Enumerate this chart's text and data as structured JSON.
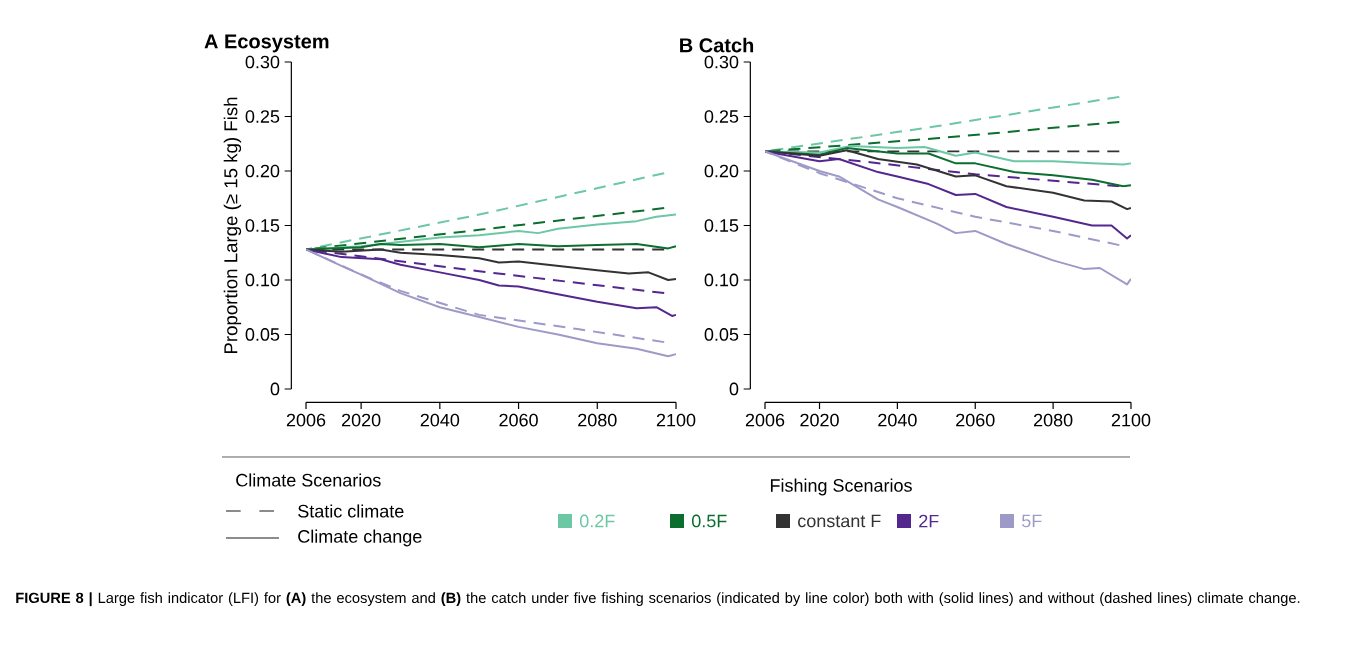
{
  "chart_data": [
    {
      "type": "line",
      "title": "A Ecosystem",
      "ylabel": "Proportion Large (≥ 15 kg) Fish",
      "legend_title": "Fishing Scenarios",
      "legend": "bottom",
      "xlim": [
        2006,
        2100
      ],
      "xticks": [
        2006,
        2020,
        2040,
        2060,
        2080,
        2100
      ],
      "ylim": [
        0,
        0.3
      ],
      "yticks": [
        0,
        0.05,
        {
          "value": 0.1,
          "label": "0.10"
        },
        0.15,
        {
          "value": 0.2,
          "label": "0.20"
        },
        0.25,
        {
          "value": 0.3,
          "label": "0.30"
        }
      ],
      "annotations": [
        "Climate Scenarios",
        "Static climate",
        "Climate change",
        "**FIGURE 8 |** Large fish indicator (LFI) for **(A)** the ecosystem and **(B)** the catch under five fishing scenarios (indicated by line color) both with (solid lines) and without (dashed lines) climate change."
      ],
      "series": [
        {
          "color": "#6cc7a5",
          "line_style": "dashed",
          "x": [
            2006,
            2050,
            2097
          ],
          "values": [
            0.128,
            0.16,
            0.198
          ]
        },
        {
          "color": "#0b6e2e",
          "line_style": "dashed",
          "x": [
            2006,
            2050,
            2097
          ],
          "values": [
            0.128,
            0.146,
            0.166
          ]
        },
        {
          "color": "#333333",
          "line_style": "dashed",
          "x": [
            2006,
            2097
          ],
          "values": [
            0.128,
            0.128
          ]
        },
        {
          "color": "#54278f",
          "line_style": "dashed",
          "x": [
            2006,
            2050,
            2097
          ],
          "values": [
            0.128,
            0.108,
            0.088
          ]
        },
        {
          "color": "#9e9ac8",
          "line_style": "dashed",
          "x": [
            2006,
            2020,
            2030,
            2050,
            2075,
            2097
          ],
          "values": [
            0.128,
            0.105,
            0.09,
            0.068,
            0.055,
            0.043
          ]
        },
        {
          "name": "0.2F",
          "color": "#6cc7a5",
          "line_style": "solid",
          "x": [
            2006,
            2020,
            2030,
            2040,
            2050,
            2060,
            2065,
            2070,
            2080,
            2090,
            2095,
            2100
          ],
          "values": [
            0.128,
            0.131,
            0.135,
            0.139,
            0.141,
            0.145,
            0.143,
            0.147,
            0.151,
            0.154,
            0.158,
            0.16
          ]
        },
        {
          "name": "0.5F",
          "color": "#0b6e2e",
          "line_style": "solid",
          "x": [
            2006,
            2020,
            2025,
            2030,
            2040,
            2050,
            2060,
            2070,
            2080,
            2090,
            2098,
            2100
          ],
          "values": [
            0.128,
            0.13,
            0.133,
            0.132,
            0.133,
            0.13,
            0.133,
            0.131,
            0.132,
            0.133,
            0.129,
            0.131
          ]
        },
        {
          "name": "constant F",
          "color": "#333333",
          "line_style": "solid",
          "x": [
            2006,
            2015,
            2025,
            2030,
            2040,
            2050,
            2055,
            2060,
            2070,
            2080,
            2088,
            2093,
            2098,
            2100
          ],
          "values": [
            0.128,
            0.126,
            0.128,
            0.125,
            0.123,
            0.12,
            0.116,
            0.117,
            0.113,
            0.109,
            0.106,
            0.107,
            0.1,
            0.101
          ]
        },
        {
          "name": "2F",
          "color": "#54278f",
          "line_style": "solid",
          "x": [
            2006,
            2015,
            2025,
            2030,
            2040,
            2050,
            2055,
            2060,
            2070,
            2080,
            2090,
            2095,
            2099,
            2100
          ],
          "values": [
            0.128,
            0.121,
            0.119,
            0.114,
            0.107,
            0.1,
            0.095,
            0.094,
            0.087,
            0.08,
            0.074,
            0.075,
            0.067,
            0.068
          ]
        },
        {
          "name": "5F",
          "color": "#9e9ac8",
          "line_style": "solid",
          "x": [
            2006,
            2015,
            2020,
            2030,
            2040,
            2050,
            2060,
            2070,
            2080,
            2090,
            2098,
            2100
          ],
          "values": [
            0.128,
            0.113,
            0.105,
            0.088,
            0.075,
            0.066,
            0.057,
            0.05,
            0.042,
            0.037,
            0.03,
            0.032
          ]
        }
      ]
    },
    {
      "type": "line",
      "title": "B Catch",
      "xlim": [
        2006,
        2100
      ],
      "xticks": [
        2006,
        2020,
        2040,
        2060,
        2080,
        2100
      ],
      "ylim": [
        0,
        0.3
      ],
      "yticks": [
        0,
        0.05,
        {
          "value": 0.1,
          "label": "0.10"
        },
        0.15,
        {
          "value": 0.2,
          "label": "0.20"
        },
        0.25,
        {
          "value": 0.3,
          "label": "0.30"
        }
      ],
      "series": [
        {
          "color": "#6cc7a5",
          "line_style": "dashed",
          "x": [
            2006,
            2050,
            2097
          ],
          "values": [
            0.218,
            0.241,
            0.268
          ]
        },
        {
          "color": "#0b6e2e",
          "line_style": "dashed",
          "x": [
            2006,
            2050,
            2097
          ],
          "values": [
            0.218,
            0.23,
            0.245
          ]
        },
        {
          "color": "#333333",
          "line_style": "dashed",
          "x": [
            2006,
            2097
          ],
          "values": [
            0.218,
            0.218
          ]
        },
        {
          "color": "#54278f",
          "line_style": "dashed",
          "x": [
            2006,
            2033,
            2060,
            2097
          ],
          "values": [
            0.218,
            0.208,
            0.197,
            0.186
          ]
        },
        {
          "color": "#9e9ac8",
          "line_style": "dashed",
          "x": [
            2006,
            2020,
            2040,
            2060,
            2080,
            2097
          ],
          "values": [
            0.218,
            0.198,
            0.175,
            0.158,
            0.145,
            0.132
          ]
        },
        {
          "color": "#6cc7a5",
          "line_style": "solid",
          "x": [
            2006,
            2020,
            2028,
            2040,
            2047,
            2055,
            2060,
            2070,
            2080,
            2090,
            2098,
            2100
          ],
          "values": [
            0.218,
            0.217,
            0.223,
            0.221,
            0.222,
            0.214,
            0.217,
            0.209,
            0.209,
            0.207,
            0.206,
            0.207
          ]
        },
        {
          "color": "#0b6e2e",
          "line_style": "solid",
          "x": [
            2006,
            2020,
            2027,
            2040,
            2048,
            2055,
            2060,
            2070,
            2080,
            2090,
            2098,
            2100
          ],
          "values": [
            0.218,
            0.215,
            0.221,
            0.216,
            0.216,
            0.207,
            0.207,
            0.199,
            0.196,
            0.192,
            0.186,
            0.187
          ]
        },
        {
          "color": "#333333",
          "line_style": "solid",
          "x": [
            2006,
            2020,
            2027,
            2035,
            2045,
            2055,
            2060,
            2068,
            2080,
            2088,
            2095,
            2099,
            2100
          ],
          "values": [
            0.218,
            0.214,
            0.219,
            0.211,
            0.206,
            0.195,
            0.196,
            0.186,
            0.18,
            0.173,
            0.172,
            0.165,
            0.166
          ]
        },
        {
          "color": "#54278f",
          "line_style": "solid",
          "x": [
            2006,
            2020,
            2025,
            2035,
            2040,
            2048,
            2055,
            2060,
            2068,
            2080,
            2090,
            2095,
            2099,
            2100
          ],
          "values": [
            0.218,
            0.209,
            0.211,
            0.199,
            0.195,
            0.188,
            0.178,
            0.179,
            0.167,
            0.158,
            0.15,
            0.15,
            0.138,
            0.141
          ]
        },
        {
          "color": "#9e9ac8",
          "line_style": "solid",
          "x": [
            2006,
            2020,
            2025,
            2035,
            2040,
            2050,
            2055,
            2060,
            2068,
            2080,
            2088,
            2092,
            2099,
            2100
          ],
          "values": [
            0.218,
            0.2,
            0.195,
            0.174,
            0.167,
            0.152,
            0.143,
            0.145,
            0.133,
            0.118,
            0.11,
            0.111,
            0.096,
            0.101
          ]
        }
      ]
    }
  ]
}
